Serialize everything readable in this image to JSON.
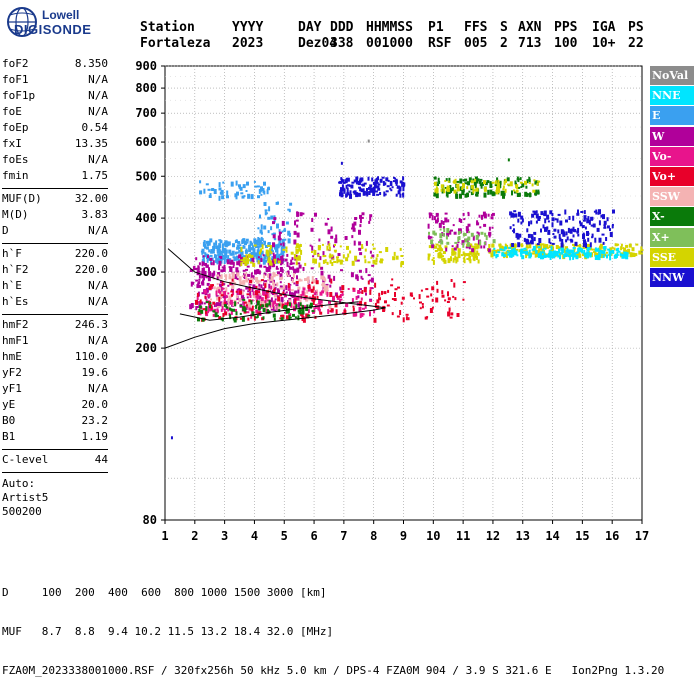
{
  "logo": {
    "line1": "Lowell",
    "line2": "DIGISONDE"
  },
  "header": {
    "labels": [
      "Station",
      "YYYY",
      "DAY",
      "DDD",
      "HHMMSS",
      "P1",
      "FFS",
      "S",
      "AXN",
      "PPS",
      "IGA",
      "PS"
    ],
    "values": [
      "Fortaleza",
      "2023",
      "Dez04",
      "338",
      "001000",
      "RSF",
      "005",
      "2",
      "713",
      "100",
      "10+",
      "22"
    ]
  },
  "params": {
    "group1": [
      {
        "k": "foF2",
        "v": "8.350"
      },
      {
        "k": "foF1",
        "v": "N/A"
      },
      {
        "k": "foF1p",
        "v": "N/A"
      },
      {
        "k": "foE",
        "v": "N/A"
      },
      {
        "k": "foEp",
        "v": "0.54"
      },
      {
        "k": "fxI",
        "v": "13.35"
      },
      {
        "k": "foEs",
        "v": "N/A"
      },
      {
        "k": "fmin",
        "v": "1.75"
      }
    ],
    "group2": [
      {
        "k": "MUF(D)",
        "v": "32.00"
      },
      {
        "k": "M(D)",
        "v": "3.83"
      },
      {
        "k": "D",
        "v": "N/A"
      }
    ],
    "group3": [
      {
        "k": "h`F",
        "v": "220.0"
      },
      {
        "k": "h`F2",
        "v": "220.0"
      },
      {
        "k": "h`E",
        "v": "N/A"
      },
      {
        "k": "h`Es",
        "v": "N/A"
      }
    ],
    "group4": [
      {
        "k": "hmF2",
        "v": "246.3"
      },
      {
        "k": "hmF1",
        "v": "N/A"
      },
      {
        "k": "hmE",
        "v": "110.0"
      },
      {
        "k": "yF2",
        "v": "19.6"
      },
      {
        "k": "yF1",
        "v": "N/A"
      },
      {
        "k": "yE",
        "v": "20.0"
      },
      {
        "k": "B0",
        "v": "23.2"
      },
      {
        "k": "B1",
        "v": "1.19"
      }
    ],
    "group5": [
      {
        "k": "C-level",
        "v": "44"
      }
    ],
    "auto": [
      "Auto:",
      "Artist5",
      "500200"
    ]
  },
  "legend": [
    {
      "label": "NoVal",
      "color": "#8c8c8c"
    },
    {
      "label": "NNE",
      "color": "#00e5ff"
    },
    {
      "label": "E",
      "color": "#3aa0f0"
    },
    {
      "label": "W",
      "color": "#b0009a"
    },
    {
      "label": "Vo-",
      "color": "#e8148c"
    },
    {
      "label": "Vo+",
      "color": "#e8002a"
    },
    {
      "label": "SSW",
      "color": "#f4b3b3"
    },
    {
      "label": "X-",
      "color": "#0a7a0a"
    },
    {
      "label": "X+",
      "color": "#7fbf5a"
    },
    {
      "label": "SSE",
      "color": "#d4d400"
    },
    {
      "label": "NNW",
      "color": "#1a10d0"
    }
  ],
  "bottom": {
    "d_line": "D     100  200  400  600  800 1000 1500 3000 [km]",
    "muf_line": "MUF   8.7  8.8  9.4 10.2 11.5 13.2 18.4 32.0 [MHz]",
    "footer": "FZA0M_2023338001000.RSF / 320fx256h 50 kHz 5.0 km / DPS-4 FZA0M 904 / 3.9 S 321.6 E   Ion2Png 1.3.20"
  },
  "chart_data": {
    "type": "scatter",
    "x_ticks": [
      "1",
      "2",
      "3",
      "4",
      "5",
      "6",
      "7",
      "8",
      "9",
      "10",
      "11",
      "12",
      "13",
      "14",
      "15",
      "16",
      "17"
    ],
    "y_ticks": [
      "80",
      "200",
      "300",
      "400",
      "500",
      "600",
      "700",
      "800",
      "900"
    ],
    "xlim": [
      1,
      17
    ],
    "y_scale": "log",
    "ylim": [
      80,
      900
    ],
    "grid": "dotted",
    "clusters": [
      {
        "series": "E",
        "fmin": 2.2,
        "fmax": 5.0,
        "hmin": 320,
        "hmax": 360,
        "n": 260
      },
      {
        "series": "E",
        "fmin": 4.0,
        "fmax": 5.2,
        "hmin": 355,
        "hmax": 440,
        "n": 40
      },
      {
        "series": "W",
        "fmin": 1.8,
        "fmax": 5.5,
        "hmin": 250,
        "hmax": 330,
        "n": 300
      },
      {
        "series": "W",
        "fmin": 4.5,
        "fmax": 8.0,
        "hmin": 260,
        "hmax": 420,
        "n": 120
      },
      {
        "series": "SSW",
        "fmin": 2.5,
        "fmax": 6.5,
        "hmin": 250,
        "hmax": 300,
        "n": 160
      },
      {
        "series": "Vo-",
        "fmin": 2.0,
        "fmax": 8.0,
        "hmin": 240,
        "hmax": 280,
        "n": 140
      },
      {
        "series": "Vo+",
        "fmin": 2.0,
        "fmax": 11.0,
        "hmin": 235,
        "hmax": 290,
        "n": 180
      },
      {
        "series": "X-",
        "fmin": 2.0,
        "fmax": 6.0,
        "hmin": 235,
        "hmax": 260,
        "n": 80
      },
      {
        "series": "SSE",
        "fmin": 3.5,
        "fmax": 9.0,
        "hmin": 315,
        "hmax": 350,
        "n": 120
      },
      {
        "series": "SSE",
        "fmin": 9.8,
        "fmax": 11.5,
        "hmin": 320,
        "hmax": 350,
        "n": 80
      },
      {
        "series": "SSE",
        "fmin": 11.8,
        "fmax": 17.0,
        "hmin": 330,
        "hmax": 350,
        "n": 200
      },
      {
        "series": "NNE",
        "fmin": 12.0,
        "fmax": 16.5,
        "hmin": 328,
        "hmax": 345,
        "n": 160
      },
      {
        "series": "NNW",
        "fmin": 12.5,
        "fmax": 16.0,
        "hmin": 350,
        "hmax": 420,
        "n": 160
      },
      {
        "series": "NNW",
        "fmin": 6.8,
        "fmax": 9.0,
        "hmin": 455,
        "hmax": 500,
        "n": 120
      },
      {
        "series": "X-",
        "fmin": 10.0,
        "fmax": 13.5,
        "hmin": 455,
        "hmax": 500,
        "n": 120
      },
      {
        "series": "SSE",
        "fmin": 10.0,
        "fmax": 13.5,
        "hmin": 465,
        "hmax": 495,
        "n": 60
      },
      {
        "series": "E",
        "fmin": 2.0,
        "fmax": 4.5,
        "hmin": 450,
        "hmax": 490,
        "n": 50
      },
      {
        "series": "W",
        "fmin": 9.8,
        "fmax": 12.0,
        "hmin": 340,
        "hmax": 420,
        "n": 80
      },
      {
        "series": "X+",
        "fmin": 9.8,
        "fmax": 12.0,
        "hmin": 350,
        "hmax": 380,
        "n": 40
      }
    ],
    "trace_upper": [
      [
        1.1,
        340
      ],
      [
        2.0,
        300
      ],
      [
        3.0,
        285
      ],
      [
        4.0,
        275
      ],
      [
        5.0,
        266
      ],
      [
        6.0,
        260
      ],
      [
        7.0,
        255
      ],
      [
        8.0,
        250
      ],
      [
        8.4,
        248
      ]
    ],
    "trace_lower": [
      [
        1.0,
        200
      ],
      [
        2.0,
        212
      ],
      [
        3.0,
        222
      ],
      [
        4.0,
        228
      ],
      [
        5.0,
        232
      ],
      [
        6.0,
        236
      ],
      [
        7.0,
        240
      ],
      [
        8.0,
        245
      ],
      [
        8.4,
        248
      ]
    ],
    "trace_inner": [
      [
        1.5,
        240
      ],
      [
        2.5,
        232
      ],
      [
        3.5,
        236
      ],
      [
        4.5,
        242
      ],
      [
        5.5,
        247
      ],
      [
        6.5,
        252
      ],
      [
        7.5,
        256
      ]
    ],
    "outliers": [
      [
        1.2,
        125,
        "NNW"
      ],
      [
        6.9,
        540,
        "NNW"
      ],
      [
        7.8,
        608,
        "NoVal"
      ],
      [
        12.5,
        550,
        "X-"
      ]
    ]
  }
}
